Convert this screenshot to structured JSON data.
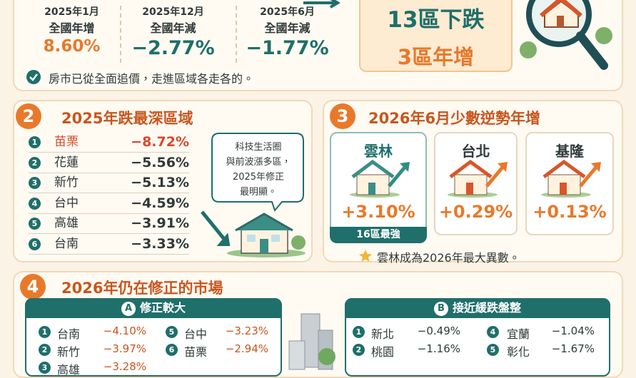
{
  "summary": {
    "stats": [
      {
        "date": "2025年1月",
        "label": "全國年增",
        "value": "8.60%"
      },
      {
        "date": "2025年12月",
        "label": "全國年減",
        "value": "−2.77%"
      },
      {
        "date": "2025年6月",
        "label": "全國年減",
        "value": "−1.77%"
      }
    ],
    "box": [
      "13區下跌",
      "3區年增"
    ],
    "note": "房市已從全面追價，走進區域各走各的。"
  },
  "section2": {
    "number": "2",
    "title": "2025年跌最深區域",
    "rows": [
      {
        "rank": "1",
        "name": "苗栗",
        "change": "−8.72%"
      },
      {
        "rank": "2",
        "name": "花蓮",
        "change": "−5.56%"
      },
      {
        "rank": "3",
        "name": "新竹",
        "change": "−5.13%"
      },
      {
        "rank": "4",
        "name": "台中",
        "change": "−4.59%"
      },
      {
        "rank": "5",
        "name": "高雄",
        "change": "−3.91%"
      },
      {
        "rank": "6",
        "name": "台南",
        "change": "−3.33%"
      }
    ],
    "bubble": [
      "科技生活圈",
      "與前波漲多區，",
      "2025年修正",
      "最明顯。"
    ]
  },
  "section3": {
    "number": "3",
    "title": "2026年6月少數逆勢年增",
    "cards": [
      {
        "name": "雲林",
        "change": "+3.10%",
        "badge": "16區最強"
      },
      {
        "name": "台北",
        "change": "+0.29%"
      },
      {
        "name": "基隆",
        "change": "+0.13%"
      }
    ],
    "note": "雲林成為2026年最大異數。"
  },
  "section4": {
    "number": "4",
    "title": "2026年仍在修正的市場",
    "groups": [
      {
        "letter": "A",
        "title": "修正較大",
        "rows": [
          {
            "rank": "1",
            "name": "台南",
            "change": "−4.10%"
          },
          {
            "rank": "5",
            "name": "台中",
            "change": "−3.23%"
          },
          {
            "rank": "2",
            "name": "新竹",
            "change": "−3.97%"
          },
          {
            "rank": "6",
            "name": "苗栗",
            "change": "−2.94%"
          },
          {
            "rank": "3",
            "name": "高雄",
            "change": "−3.28%"
          }
        ]
      },
      {
        "letter": "B",
        "title": "接近緩跌盤整",
        "rows": [
          {
            "rank": "1",
            "name": "新北",
            "change": "−0.49%"
          },
          {
            "rank": "4",
            "name": "宜蘭",
            "change": "−1.04%"
          },
          {
            "rank": "2",
            "name": "桃園",
            "change": "−1.16%"
          },
          {
            "rank": "5",
            "name": "彰化",
            "change": "−1.67%"
          }
        ]
      }
    ]
  }
}
